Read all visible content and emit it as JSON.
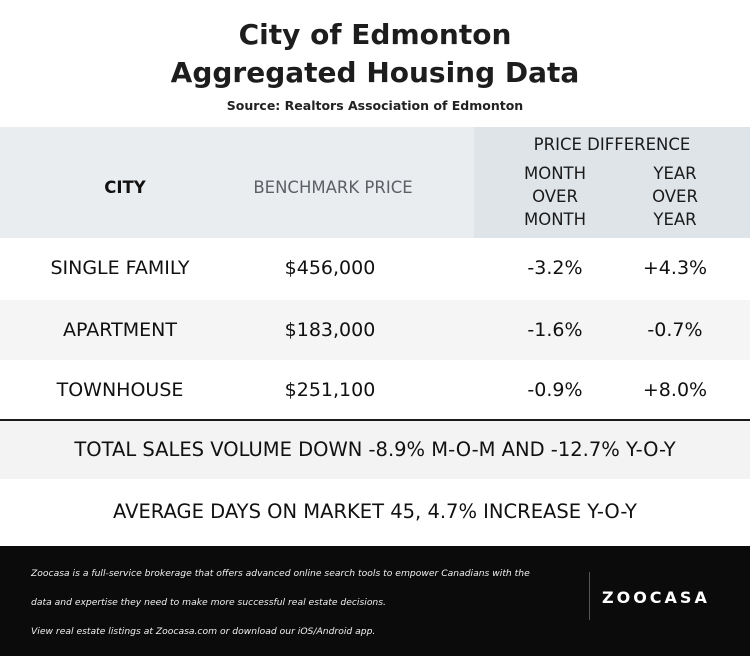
{
  "header": {
    "title_line1": "City of Edmonton",
    "title_line2": "Aggregated Housing Data",
    "source": "Source: Realtors Association of Edmonton"
  },
  "chart_data": {
    "type": "table",
    "columns": {
      "city": "CITY",
      "benchmark": "BENCHMARK PRICE",
      "price_difference": "PRICE DIFFERENCE",
      "mom": "MONTH OVER MONTH",
      "yoy": "YEAR OVER YEAR"
    },
    "rows": [
      {
        "type": "SINGLE FAMILY",
        "price": "$456,000",
        "mom": "-3.2%",
        "yoy": "+4.3%"
      },
      {
        "type": "APARTMENT",
        "price": "$183,000",
        "mom": "-1.6%",
        "yoy": "-0.7%"
      },
      {
        "type": "TOWNHOUSE",
        "price": "$251,100",
        "mom": "-0.9%",
        "yoy": "+8.0%"
      }
    ]
  },
  "summary": {
    "sales": "TOTAL SALES VOLUME DOWN -8.9% M-O-M AND -12.7% Y-O-Y",
    "days": "AVERAGE DAYS ON MARKET 45, 4.7% INCREASE Y-O-Y"
  },
  "footer": {
    "line1": "Zoocasa is a full-service brokerage that offers advanced online search tools to empower Canadians with the",
    "line2": "data and expertise they need to make more successful real estate decisions.",
    "line3": "View real estate listings at Zoocasa.com or download our iOS/Android app.",
    "logo": "ZOOCASA"
  },
  "colors": {
    "header_bg": "#e9edf0",
    "header_right_bg": "#dfe4e9",
    "footer_bg": "#0b0b0b"
  }
}
